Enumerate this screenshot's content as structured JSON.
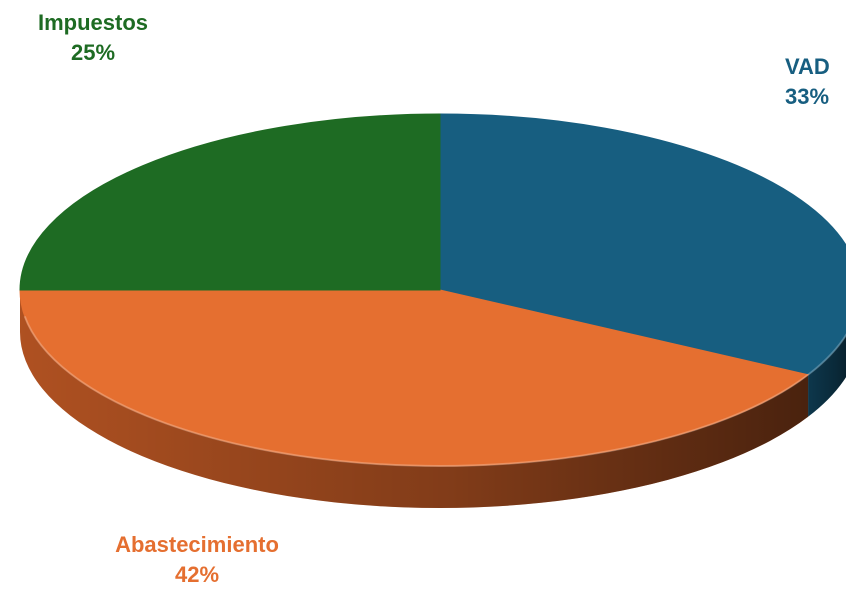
{
  "chart_data": {
    "type": "pie",
    "title": "",
    "style": "3d",
    "slices": [
      {
        "label": "VAD",
        "value": 33,
        "display": "33%",
        "color": "#175E80",
        "side_color": "#0E3A50"
      },
      {
        "label": "Abastecimiento",
        "value": 42,
        "display": "42%",
        "color": "#E56F30",
        "side_color": "#B85523"
      },
      {
        "label": "Impuestos",
        "value": 25,
        "display": "25%",
        "color": "#1E6B23",
        "side_color": "#134516"
      }
    ]
  }
}
